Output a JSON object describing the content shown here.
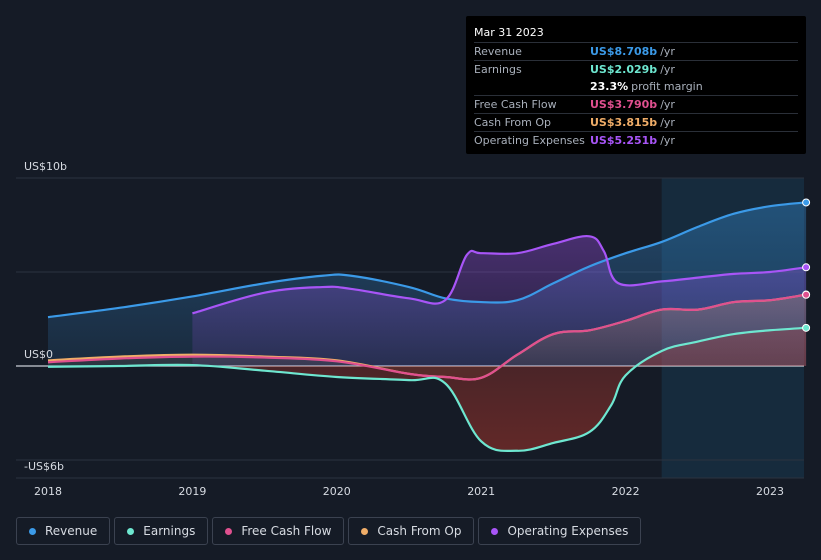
{
  "tooltip": {
    "date": "Mar 31 2023",
    "rows": [
      {
        "label": "Revenue",
        "value": "US$8.708b",
        "unit": "/yr",
        "color": "#3b9ae8"
      },
      {
        "label": "Earnings",
        "value": "US$2.029b",
        "unit": "/yr",
        "color": "#6ee7d0"
      },
      {
        "label": "",
        "value": "23.3%",
        "unit": "profit margin",
        "color": "#ffffff"
      },
      {
        "label": "Free Cash Flow",
        "value": "US$3.790b",
        "unit": "/yr",
        "color": "#e0508f"
      },
      {
        "label": "Cash From Op",
        "value": "US$3.815b",
        "unit": "/yr",
        "color": "#f0ad68"
      },
      {
        "label": "Operating Expenses",
        "value": "US$5.251b",
        "unit": "/yr",
        "color": "#a855f7"
      }
    ]
  },
  "legend": [
    {
      "label": "Revenue",
      "color": "#3b9ae8"
    },
    {
      "label": "Earnings",
      "color": "#6ee7d0"
    },
    {
      "label": "Free Cash Flow",
      "color": "#e0508f"
    },
    {
      "label": "Cash From Op",
      "color": "#f0ad68"
    },
    {
      "label": "Operating Expenses",
      "color": "#a855f7"
    }
  ],
  "chart_data": {
    "type": "area",
    "y_tick_labels": {
      "top": "US$10b",
      "zero": "US$0",
      "bottom": "-US$6b"
    },
    "ylim": [
      -6,
      10
    ],
    "xlim": [
      2018,
      2023.25
    ],
    "x_tick_labels": [
      "2018",
      "2019",
      "2020",
      "2021",
      "2022",
      "2023"
    ],
    "x_ticks": [
      2018,
      2019,
      2020,
      2021,
      2022,
      2023
    ],
    "highlight_start": 2022.25,
    "series": [
      {
        "name": "Revenue",
        "color": "#3b9ae8",
        "fill": true,
        "points": [
          [
            2018,
            2.6
          ],
          [
            2018.5,
            3.1
          ],
          [
            2019,
            3.7
          ],
          [
            2019.5,
            4.4
          ],
          [
            2019.9,
            4.8
          ],
          [
            2020.1,
            4.8
          ],
          [
            2020.5,
            4.2
          ],
          [
            2020.75,
            3.6
          ],
          [
            2021,
            3.4
          ],
          [
            2021.25,
            3.5
          ],
          [
            2021.5,
            4.4
          ],
          [
            2021.75,
            5.3
          ],
          [
            2022,
            6.0
          ],
          [
            2022.25,
            6.6
          ],
          [
            2022.5,
            7.4
          ],
          [
            2022.75,
            8.1
          ],
          [
            2023,
            8.5
          ],
          [
            2023.25,
            8.7
          ]
        ]
      },
      {
        "name": "Operating Expenses",
        "color": "#a855f7",
        "fill": true,
        "points": [
          [
            2019,
            2.8
          ],
          [
            2019.5,
            3.9
          ],
          [
            2019.9,
            4.2
          ],
          [
            2020.1,
            4.1
          ],
          [
            2020.5,
            3.6
          ],
          [
            2020.75,
            3.5
          ],
          [
            2020.9,
            5.9
          ],
          [
            2021,
            6.0
          ],
          [
            2021.25,
            6.0
          ],
          [
            2021.5,
            6.5
          ],
          [
            2021.75,
            6.9
          ],
          [
            2021.85,
            6.1
          ],
          [
            2021.95,
            4.4
          ],
          [
            2022.25,
            4.5
          ],
          [
            2022.5,
            4.7
          ],
          [
            2022.75,
            4.9
          ],
          [
            2023,
            5.0
          ],
          [
            2023.25,
            5.25
          ]
        ]
      },
      {
        "name": "Cash From Op",
        "color": "#f0ad68",
        "fill": true,
        "points": [
          [
            2018,
            0.3
          ],
          [
            2018.5,
            0.5
          ],
          [
            2019,
            0.6
          ],
          [
            2019.5,
            0.5
          ],
          [
            2020,
            0.3
          ],
          [
            2020.5,
            -0.5
          ],
          [
            2020.75,
            -0.7
          ],
          [
            2021,
            -0.75
          ],
          [
            2021.25,
            0.6
          ],
          [
            2021.5,
            1.7
          ],
          [
            2021.75,
            1.9
          ],
          [
            2022,
            2.4
          ],
          [
            2022.25,
            3.0
          ],
          [
            2022.5,
            3.0
          ],
          [
            2022.75,
            3.4
          ],
          [
            2023,
            3.5
          ],
          [
            2023.25,
            3.8
          ]
        ]
      },
      {
        "name": "Free Cash Flow",
        "color": "#e0508f",
        "fill": false,
        "points": [
          [
            2018,
            0.2
          ],
          [
            2018.5,
            0.4
          ],
          [
            2019,
            0.5
          ],
          [
            2019.5,
            0.45
          ],
          [
            2020,
            0.25
          ],
          [
            2020.5,
            -0.5
          ],
          [
            2020.75,
            -0.7
          ],
          [
            2021,
            -0.75
          ],
          [
            2021.25,
            0.6
          ],
          [
            2021.5,
            1.7
          ],
          [
            2021.75,
            1.9
          ],
          [
            2022,
            2.4
          ],
          [
            2022.25,
            3.0
          ],
          [
            2022.5,
            3.0
          ],
          [
            2022.75,
            3.4
          ],
          [
            2023,
            3.5
          ],
          [
            2023.25,
            3.79
          ]
        ]
      },
      {
        "name": "Earnings",
        "color": "#6ee7d0",
        "fill": true,
        "points": [
          [
            2018,
            -0.05
          ],
          [
            2018.5,
            0.0
          ],
          [
            2019,
            0.05
          ],
          [
            2019.5,
            -0.3
          ],
          [
            2020,
            -0.7
          ],
          [
            2020.5,
            -0.9
          ],
          [
            2020.75,
            -1.1
          ],
          [
            2021,
            -4.8
          ],
          [
            2021.25,
            -5.4
          ],
          [
            2021.5,
            -4.9
          ],
          [
            2021.75,
            -4.2
          ],
          [
            2021.9,
            -2.5
          ],
          [
            2022,
            -0.6
          ],
          [
            2022.25,
            0.8
          ],
          [
            2022.5,
            1.3
          ],
          [
            2022.75,
            1.7
          ],
          [
            2023,
            1.9
          ],
          [
            2023.25,
            2.03
          ]
        ]
      }
    ]
  }
}
